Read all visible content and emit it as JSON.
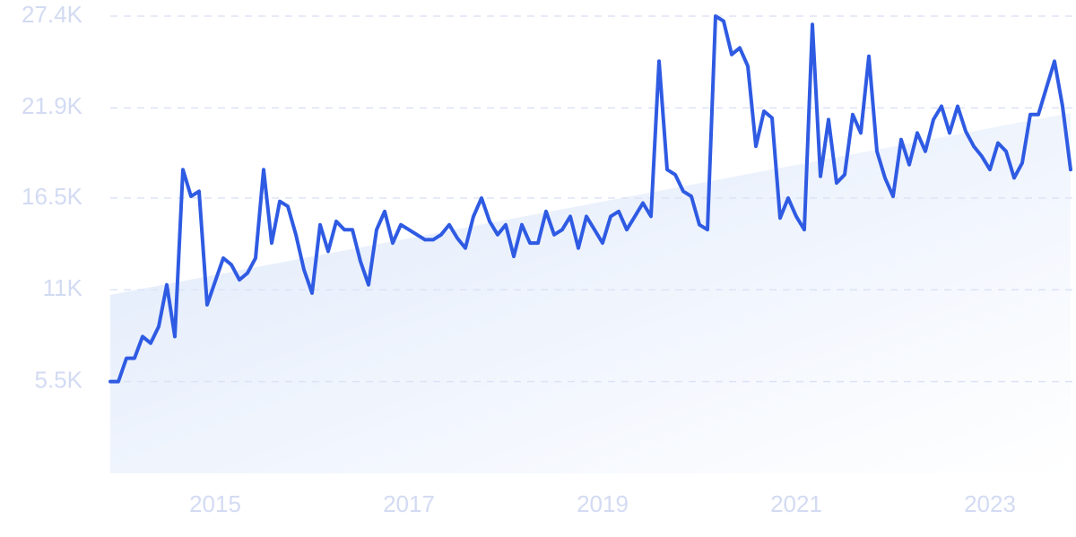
{
  "chart_data": {
    "type": "line",
    "categories": [
      null,
      null,
      null,
      null,
      null,
      null,
      null,
      null,
      null,
      null,
      null,
      null,
      null,
      "2015",
      null,
      null,
      null,
      null,
      null,
      null,
      null,
      null,
      null,
      null,
      null,
      null,
      null,
      null,
      null,
      null,
      null,
      null,
      null,
      null,
      null,
      null,
      null,
      "2017",
      null,
      null,
      null,
      null,
      null,
      null,
      null,
      null,
      null,
      null,
      null,
      null,
      null,
      null,
      null,
      null,
      null,
      null,
      null,
      null,
      null,
      null,
      null,
      "2019",
      null,
      null,
      null,
      null,
      null,
      null,
      null,
      null,
      null,
      null,
      null,
      null,
      null,
      null,
      null,
      null,
      null,
      null,
      null,
      null,
      null,
      null,
      null,
      "2021",
      null,
      null,
      null,
      null,
      null,
      null,
      null,
      null,
      null,
      null,
      null,
      null,
      null,
      null,
      null,
      null,
      null,
      null,
      null,
      null,
      null,
      null,
      null,
      "2023",
      null,
      null,
      null,
      null,
      null,
      null,
      null,
      null,
      null,
      null
    ],
    "series": [
      {
        "color": "#2f5be3",
        "values": [
          5.5,
          5.5,
          6.9,
          6.9,
          8.2,
          7.8,
          8.8,
          11.3,
          8.2,
          18.2,
          16.6,
          16.9,
          10.1,
          11.5,
          12.9,
          12.5,
          11.6,
          12.0,
          12.9,
          18.2,
          13.8,
          16.3,
          16.0,
          14.3,
          12.2,
          10.8,
          14.9,
          13.3,
          15.1,
          14.6,
          14.6,
          12.7,
          11.3,
          14.6,
          15.7,
          13.8,
          14.9,
          14.6,
          14.3,
          14.0,
          14.0,
          14.3,
          14.9,
          14.1,
          13.5,
          15.4,
          16.5,
          15.1,
          14.3,
          14.9,
          13.0,
          14.9,
          13.8,
          13.8,
          15.7,
          14.3,
          14.6,
          15.4,
          13.5,
          15.4,
          14.6,
          13.8,
          15.4,
          15.7,
          14.6,
          15.4,
          16.2,
          15.4,
          24.7,
          18.2,
          17.9,
          16.9,
          16.6,
          14.9,
          14.6,
          27.4,
          27.1,
          25.1,
          25.5,
          24.4,
          19.6,
          21.7,
          21.3,
          15.3,
          16.5,
          15.4,
          14.6,
          26.9,
          17.8,
          21.2,
          17.4,
          17.9,
          21.5,
          20.4,
          25.0,
          19.3,
          17.7,
          16.6,
          20.0,
          18.5,
          20.4,
          19.3,
          21.2,
          22.0,
          20.4,
          22.0,
          20.5,
          19.6,
          19.0,
          18.2,
          19.8,
          19.3,
          17.7,
          18.6,
          21.5,
          21.5,
          23.1,
          24.7,
          22.0,
          18.2
        ]
      }
    ],
    "trend": [
      10.7,
      21.6
    ],
    "ylim": [
      0,
      27.4
    ],
    "yticks": [
      {
        "value": 5.5,
        "label": "5.5K"
      },
      {
        "value": 11,
        "label": "11K"
      },
      {
        "value": 16.5,
        "label": "16.5K"
      },
      {
        "value": 21.9,
        "label": "21.9K"
      },
      {
        "value": 27.4,
        "label": "27.4K"
      }
    ],
    "grid": true
  }
}
